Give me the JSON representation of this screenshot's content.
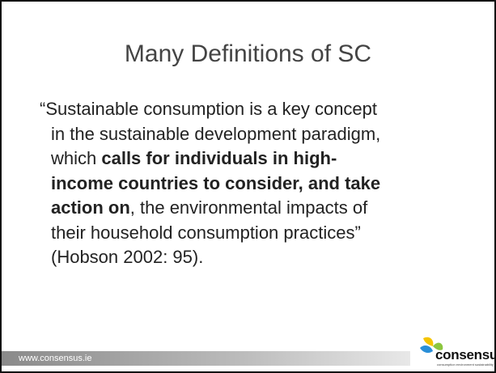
{
  "slide": {
    "title": "Many Definitions of SC",
    "body": {
      "lines": [
        [
          {
            "text": "“Sustainable consumption is a key concept",
            "bold": false
          }
        ],
        [
          {
            "text": "in the sustainable development paradigm,",
            "bold": false
          }
        ],
        [
          {
            "text": "which ",
            "bold": false
          },
          {
            "text": "calls for individuals in high-",
            "bold": true
          }
        ],
        [
          {
            "text": "income countries to consider, and take",
            "bold": true
          }
        ],
        [
          {
            "text": "action on",
            "bold": true
          },
          {
            "text": ", the environmental impacts of",
            "bold": false
          }
        ],
        [
          {
            "text": "their household consumption practices”",
            "bold": false
          }
        ],
        [
          {
            "text": "(Hobson 2002: 95).",
            "bold": false
          }
        ]
      ]
    },
    "footer": {
      "url": "www.consensus.ie",
      "logo": "consensus",
      "tagline": "consumption environment sustainability"
    }
  }
}
